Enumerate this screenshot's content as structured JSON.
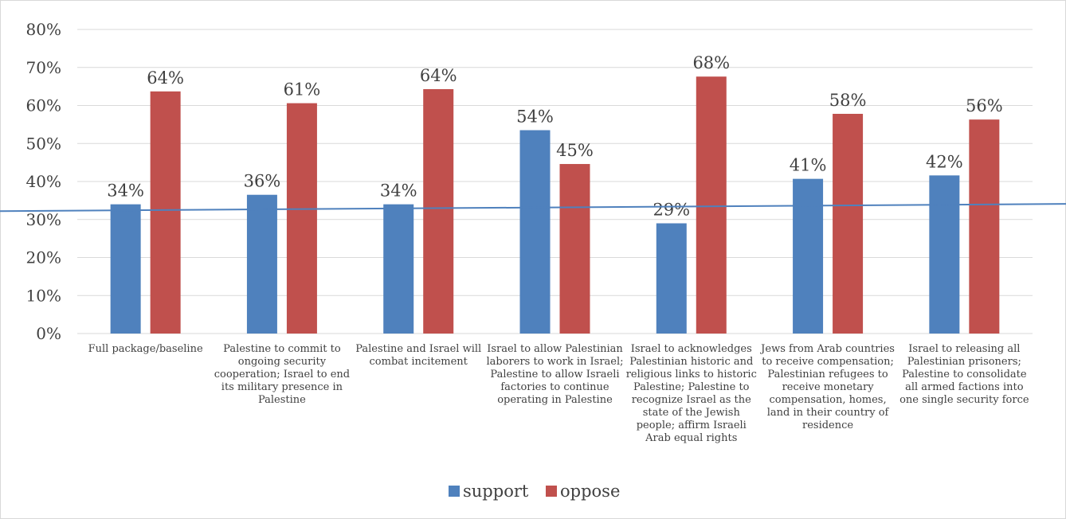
{
  "chart_data": {
    "type": "bar",
    "title": "",
    "xlabel": "",
    "ylabel": "",
    "ylim": [
      0,
      80
    ],
    "yticks": [
      "0%",
      "10%",
      "20%",
      "30%",
      "40%",
      "50%",
      "60%",
      "70%",
      "80%"
    ],
    "grid": true,
    "legend_position": "bottom",
    "categories": [
      "Full package/baseline",
      "Palestine to commit to ongoing security cooperation; Israel to end its military presence in Palestine",
      "Palestine and Israel will combat incitement",
      "Israel to allow Palestinian laborers to work in Israel; Palestine to allow Israeli factories to continue operating in Palestine",
      "Israel to acknowledges Palestinian historic and religious links to historic Palestine; Palestine to recognize Israel as the state of the Jewish people; affirm Israeli Arab equal rights",
      "Jews from Arab countries to receive compensation; Palestinian refugees to receive monetary compensation, homes, land in their country of residence",
      "Israel to releasing all Palestinian prisoners; Palestine to consolidate all armed factions into one single security force"
    ],
    "series": [
      {
        "name": "support",
        "color": "#4f81bd",
        "values": [
          34,
          36.5,
          34,
          53.5,
          29,
          40.7,
          41.6
        ],
        "labels": [
          "34%",
          "36%",
          "34%",
          "54%",
          "29%",
          "41%",
          "42%"
        ]
      },
      {
        "name": "oppose",
        "color": "#c0504d",
        "values": [
          63.7,
          60.6,
          64.3,
          44.6,
          67.6,
          57.8,
          56.3
        ],
        "labels": [
          "64%",
          "61%",
          "64%",
          "45%",
          "68%",
          "58%",
          "56%"
        ]
      }
    ],
    "trendline": {
      "color": "#4f81bd",
      "start_value": 32.2,
      "end_value": 34.1
    }
  }
}
